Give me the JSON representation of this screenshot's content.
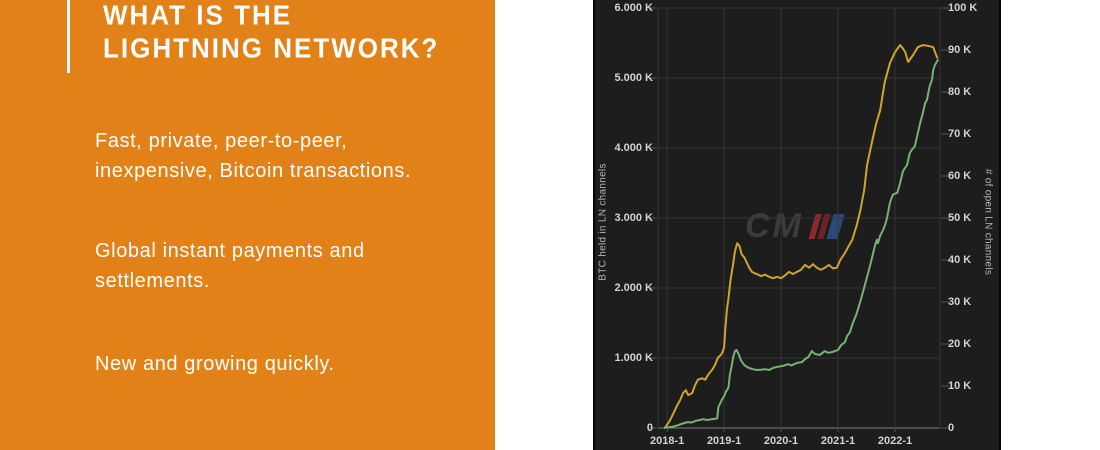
{
  "slide": {
    "title_line1": "WHAT IS THE",
    "title_line2": "LIGHTNING NETWORK?",
    "bullets": [
      {
        "line1": "Fast, private, peer-to-peer,",
        "line2": "inexpensive, Bitcoin transactions."
      },
      {
        "line1": "Global instant payments and",
        "line2": "settlements."
      },
      {
        "line1": "New and growing quickly.",
        "line2": ""
      }
    ],
    "accent_orange": "#e28117",
    "text_color": "#ffffff"
  },
  "chart_data": {
    "type": "line",
    "title": "",
    "background": "#1d1d1d",
    "grid": true,
    "grid_color": "#353535",
    "baseline_color": "#7d7d7d",
    "tick_color": "#555555",
    "watermark": "CM",
    "left_axis": {
      "label": "BTC held in LN channels",
      "range": [
        0,
        6000
      ],
      "tick_values": [
        0,
        1000,
        2000,
        3000,
        4000,
        5000,
        6000
      ],
      "tick_labels": [
        "0",
        "1.000 K",
        "2.000 K",
        "3.000 K",
        "4.000 K",
        "5.000 K",
        "6.000 K"
      ]
    },
    "right_axis": {
      "label": "# of open LN channels",
      "range": [
        0,
        100000
      ],
      "tick_values": [
        0,
        10000,
        20000,
        30000,
        40000,
        50000,
        60000,
        70000,
        80000,
        90000,
        100000
      ],
      "tick_labels": [
        "0",
        "10 K",
        "20 K",
        "30 K",
        "40 K",
        "50 K",
        "60 K",
        "70 K",
        "80 K",
        "90 K",
        "100 K"
      ]
    },
    "x_axis": {
      "range": [
        2017.84,
        2022.79
      ],
      "tick_years": [
        2018,
        2019,
        2020,
        2021,
        2022
      ],
      "tick_labels": [
        "2018-1",
        "2019-1",
        "2020-1",
        "2021-1",
        "2022-1"
      ]
    },
    "series": [
      {
        "name": "BTC held in LN channels",
        "axis": "left",
        "color": "#d0a42c",
        "points": [
          [
            2017.96,
            0
          ],
          [
            2018.05,
            110
          ],
          [
            2018.11,
            210
          ],
          [
            2018.18,
            330
          ],
          [
            2018.23,
            400
          ],
          [
            2018.28,
            500
          ],
          [
            2018.33,
            540
          ],
          [
            2018.37,
            470
          ],
          [
            2018.44,
            500
          ],
          [
            2018.49,
            610
          ],
          [
            2018.54,
            690
          ],
          [
            2018.61,
            710
          ],
          [
            2018.67,
            690
          ],
          [
            2018.72,
            760
          ],
          [
            2018.79,
            830
          ],
          [
            2018.84,
            900
          ],
          [
            2018.89,
            1000
          ],
          [
            2018.96,
            1060
          ],
          [
            2019.0,
            1150
          ],
          [
            2019.02,
            1400
          ],
          [
            2019.05,
            1690
          ],
          [
            2019.08,
            1870
          ],
          [
            2019.11,
            2100
          ],
          [
            2019.16,
            2350
          ],
          [
            2019.19,
            2520
          ],
          [
            2019.23,
            2640
          ],
          [
            2019.27,
            2600
          ],
          [
            2019.31,
            2480
          ],
          [
            2019.36,
            2430
          ],
          [
            2019.4,
            2360
          ],
          [
            2019.44,
            2290
          ],
          [
            2019.49,
            2230
          ],
          [
            2019.54,
            2210
          ],
          [
            2019.6,
            2190
          ],
          [
            2019.65,
            2170
          ],
          [
            2019.72,
            2190
          ],
          [
            2019.79,
            2160
          ],
          [
            2019.86,
            2140
          ],
          [
            2019.93,
            2160
          ],
          [
            2020.0,
            2140
          ],
          [
            2020.07,
            2180
          ],
          [
            2020.14,
            2230
          ],
          [
            2020.21,
            2200
          ],
          [
            2020.28,
            2230
          ],
          [
            2020.35,
            2260
          ],
          [
            2020.42,
            2330
          ],
          [
            2020.49,
            2290
          ],
          [
            2020.56,
            2340
          ],
          [
            2020.63,
            2290
          ],
          [
            2020.7,
            2260
          ],
          [
            2020.77,
            2290
          ],
          [
            2020.84,
            2330
          ],
          [
            2020.91,
            2280
          ],
          [
            2020.98,
            2290
          ],
          [
            2021.04,
            2400
          ],
          [
            2021.12,
            2500
          ],
          [
            2021.18,
            2590
          ],
          [
            2021.25,
            2690
          ],
          [
            2021.33,
            2900
          ],
          [
            2021.39,
            3100
          ],
          [
            2021.46,
            3400
          ],
          [
            2021.51,
            3760
          ],
          [
            2021.6,
            4100
          ],
          [
            2021.67,
            4350
          ],
          [
            2021.74,
            4540
          ],
          [
            2021.82,
            4940
          ],
          [
            2021.91,
            5210
          ],
          [
            2022.0,
            5370
          ],
          [
            2022.09,
            5470
          ],
          [
            2022.14,
            5420
          ],
          [
            2022.18,
            5370
          ],
          [
            2022.23,
            5230
          ],
          [
            2022.32,
            5330
          ],
          [
            2022.4,
            5440
          ],
          [
            2022.49,
            5470
          ],
          [
            2022.58,
            5460
          ],
          [
            2022.67,
            5440
          ],
          [
            2022.74,
            5290
          ]
        ]
      },
      {
        "name": "# of open LN channels",
        "axis": "right",
        "color": "#76b372",
        "points": [
          [
            2017.96,
            100
          ],
          [
            2018.1,
            300
          ],
          [
            2018.2,
            700
          ],
          [
            2018.3,
            1200
          ],
          [
            2018.37,
            1400
          ],
          [
            2018.43,
            1300
          ],
          [
            2018.5,
            1700
          ],
          [
            2018.57,
            1900
          ],
          [
            2018.63,
            2100
          ],
          [
            2018.7,
            1900
          ],
          [
            2018.78,
            2100
          ],
          [
            2018.84,
            2200
          ],
          [
            2018.88,
            2300
          ],
          [
            2018.9,
            5000
          ],
          [
            2018.96,
            6700
          ],
          [
            2019.0,
            7600
          ],
          [
            2019.03,
            8600
          ],
          [
            2019.06,
            9200
          ],
          [
            2019.08,
            9800
          ],
          [
            2019.1,
            12600
          ],
          [
            2019.13,
            14500
          ],
          [
            2019.16,
            16900
          ],
          [
            2019.19,
            18300
          ],
          [
            2019.22,
            18600
          ],
          [
            2019.26,
            17400
          ],
          [
            2019.3,
            16000
          ],
          [
            2019.36,
            14900
          ],
          [
            2019.42,
            14400
          ],
          [
            2019.5,
            14000
          ],
          [
            2019.58,
            13800
          ],
          [
            2019.66,
            13900
          ],
          [
            2019.72,
            14000
          ],
          [
            2019.79,
            13800
          ],
          [
            2019.86,
            14300
          ],
          [
            2019.95,
            14600
          ],
          [
            2020.04,
            14800
          ],
          [
            2020.12,
            15200
          ],
          [
            2020.18,
            14900
          ],
          [
            2020.28,
            15500
          ],
          [
            2020.37,
            15700
          ],
          [
            2020.42,
            16400
          ],
          [
            2020.48,
            16900
          ],
          [
            2020.54,
            18300
          ],
          [
            2020.6,
            17600
          ],
          [
            2020.68,
            17400
          ],
          [
            2020.77,
            18300
          ],
          [
            2020.83,
            17900
          ],
          [
            2020.9,
            18100
          ],
          [
            2021.0,
            18600
          ],
          [
            2021.06,
            19800
          ],
          [
            2021.12,
            20400
          ],
          [
            2021.16,
            21900
          ],
          [
            2021.21,
            22800
          ],
          [
            2021.26,
            25000
          ],
          [
            2021.32,
            27000
          ],
          [
            2021.39,
            30000
          ],
          [
            2021.45,
            33000
          ],
          [
            2021.51,
            36000
          ],
          [
            2021.56,
            38500
          ],
          [
            2021.6,
            40700
          ],
          [
            2021.64,
            43000
          ],
          [
            2021.68,
            44800
          ],
          [
            2021.7,
            44000
          ],
          [
            2021.74,
            45800
          ],
          [
            2021.79,
            47100
          ],
          [
            2021.83,
            48500
          ],
          [
            2021.86,
            50000
          ],
          [
            2021.91,
            53600
          ],
          [
            2021.96,
            55500
          ],
          [
            2022.0,
            55800
          ],
          [
            2022.04,
            56000
          ],
          [
            2022.09,
            58300
          ],
          [
            2022.14,
            61200
          ],
          [
            2022.21,
            62600
          ],
          [
            2022.26,
            65500
          ],
          [
            2022.3,
            66300
          ],
          [
            2022.35,
            67100
          ],
          [
            2022.4,
            70200
          ],
          [
            2022.44,
            72600
          ],
          [
            2022.49,
            75000
          ],
          [
            2022.53,
            77400
          ],
          [
            2022.56,
            78100
          ],
          [
            2022.61,
            81400
          ],
          [
            2022.65,
            82900
          ],
          [
            2022.67,
            85200
          ],
          [
            2022.7,
            86400
          ],
          [
            2022.75,
            87600
          ]
        ]
      }
    ]
  }
}
